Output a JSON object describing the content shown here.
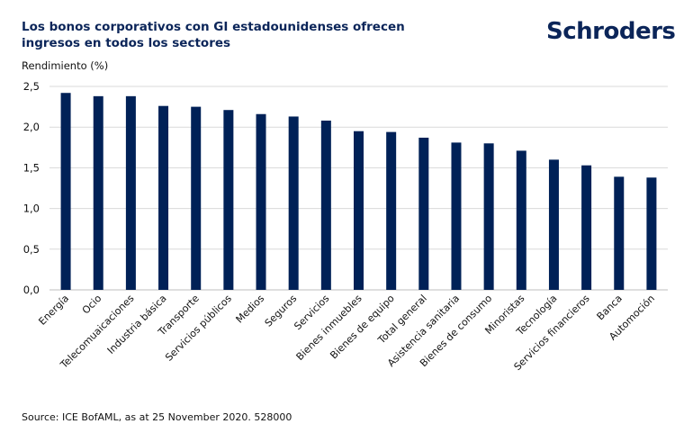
{
  "title": "Los bonos corporativos con GI estadounidenses ofrecen ingresos en todos los sectores",
  "logo": "Schroders",
  "source": "Source: ICE BofAML, as at 25 November 2020. 528000",
  "colors": {
    "bar": "#002157",
    "grid": "#d9d9d9",
    "title": "#0b2559"
  },
  "chart_data": {
    "type": "bar",
    "title": "Los bonos corporativos con GI estadounidenses ofrecen ingresos en todos los sectores",
    "ylabel": "Rendimiento (%)",
    "xlabel": "",
    "ylim": [
      0,
      2.5
    ],
    "yticks": [
      "0,0",
      "0,5",
      "1,0",
      "1,5",
      "2,0",
      "2,5"
    ],
    "grid": true,
    "categories": [
      "Energía",
      "Ocio",
      "Telecomuaicaciones",
      "Industria básica",
      "Transporte",
      "Servicios públicos",
      "Medios",
      "Seguros",
      "Servicios",
      "Bienes inmuebles",
      "Bienes de equipo",
      "Total general",
      "Asistencia sanitaria",
      "Bienes de consumo",
      "Minoristas",
      "Tecnología",
      "Servicios financieros",
      "Banca",
      "Automoción"
    ],
    "values": [
      2.42,
      2.38,
      2.38,
      2.26,
      2.25,
      2.21,
      2.16,
      2.13,
      2.08,
      1.95,
      1.94,
      1.87,
      1.81,
      1.8,
      1.71,
      1.6,
      1.53,
      1.39,
      1.38
    ]
  }
}
